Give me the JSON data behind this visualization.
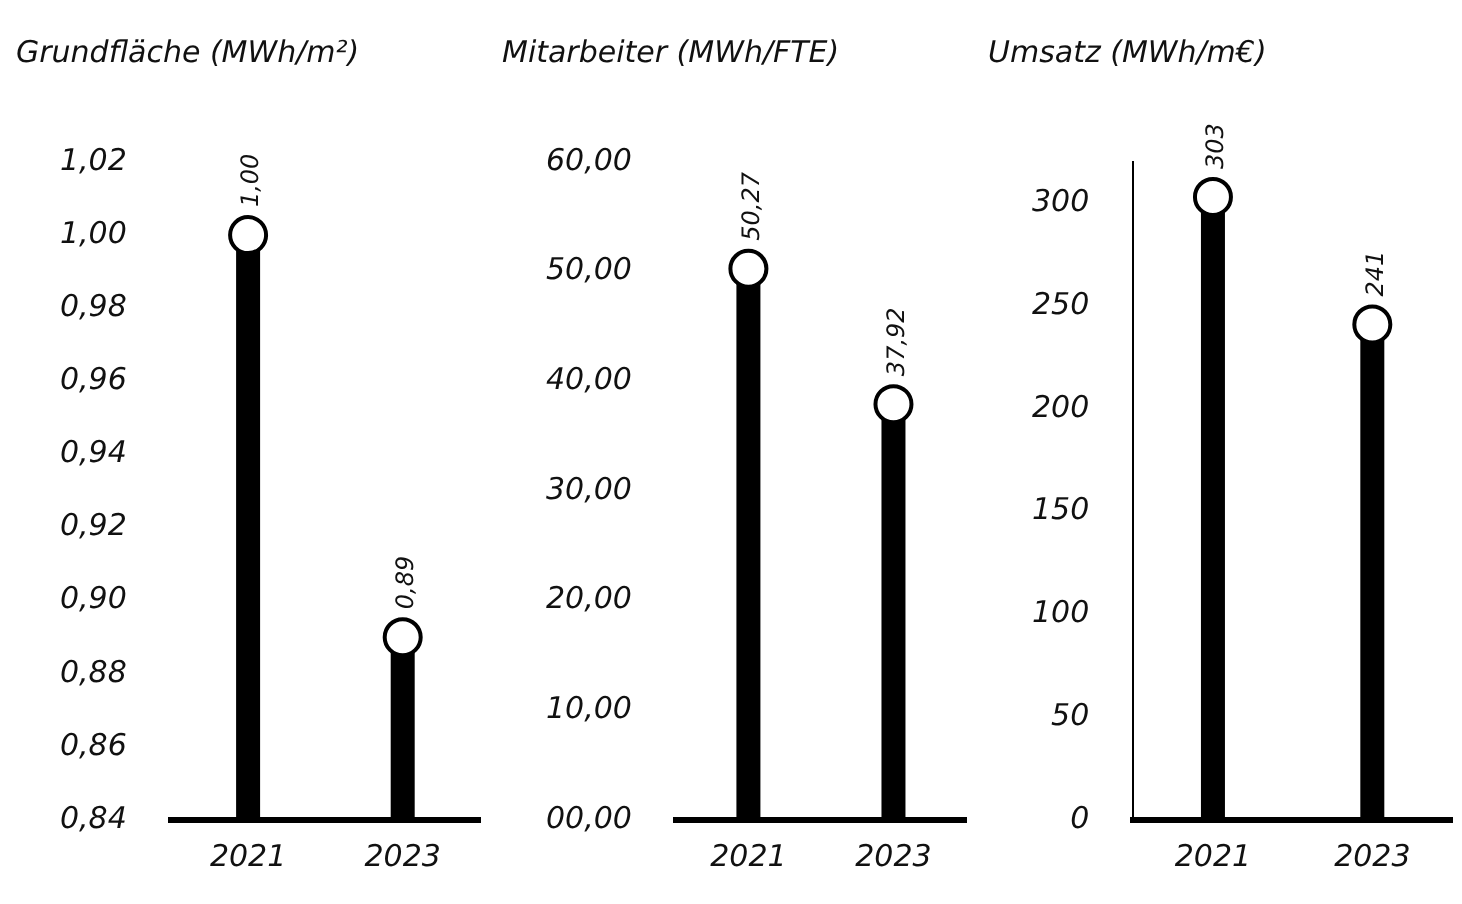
{
  "chart_data": [
    {
      "type": "lollipop",
      "title": "Grundfläche (MWh/m²)",
      "categories": [
        "2021",
        "2023"
      ],
      "values": [
        1.0,
        0.89
      ],
      "colors": [
        "#000000",
        "#000000"
      ],
      "value_labels": [
        "1,00",
        "0,89"
      ],
      "ylim": [
        0.84,
        1.02
      ],
      "yticks": [
        {
          "value": 0.84,
          "label": "0,84"
        },
        {
          "value": 0.86,
          "label": "0,86"
        },
        {
          "value": 0.88,
          "label": "0,88"
        },
        {
          "value": 0.9,
          "label": "0,90"
        },
        {
          "value": 0.92,
          "label": "0,92"
        },
        {
          "value": 0.94,
          "label": "0,94"
        },
        {
          "value": 0.96,
          "label": "0,96"
        },
        {
          "value": 0.98,
          "label": "0,98"
        },
        {
          "value": 1.0,
          "label": "1,00"
        },
        {
          "value": 1.02,
          "label": "1,02"
        }
      ],
      "legend": false,
      "marker": "circle"
    },
    {
      "type": "lollipop",
      "title": "Mitarbeiter (MWh/FTE)",
      "categories": [
        "2021",
        "2023"
      ],
      "values": [
        50.27,
        37.92
      ],
      "colors": [
        "#000000",
        "#000000"
      ],
      "value_labels": [
        "50,27",
        "37,92"
      ],
      "ylim": [
        0,
        60
      ],
      "yticks": [
        {
          "value": 0,
          "label": "00,00"
        },
        {
          "value": 10,
          "label": "10,00"
        },
        {
          "value": 20,
          "label": "20,00"
        },
        {
          "value": 30,
          "label": "30,00"
        },
        {
          "value": 40,
          "label": "40,00"
        },
        {
          "value": 50,
          "label": "50,00"
        },
        {
          "value": 60,
          "label": "60,00"
        }
      ],
      "legend": false,
      "marker": "circle"
    },
    {
      "type": "lollipop",
      "title": "Umsatz (MWh/m€)",
      "categories": [
        "2021",
        "2023"
      ],
      "values": [
        303,
        241
      ],
      "colors": [
        "#000000",
        "#000000"
      ],
      "value_labels": [
        "303",
        "241"
      ],
      "ylim": [
        0,
        320
      ],
      "yticks": [
        0,
        50,
        100,
        150,
        200,
        250,
        300
      ],
      "legend": false,
      "marker": "circle"
    }
  ]
}
